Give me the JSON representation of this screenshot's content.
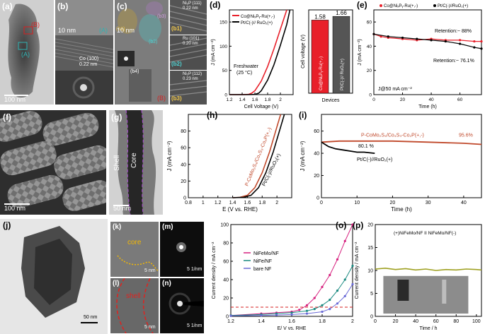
{
  "panels": {
    "a": {
      "label": "(a)",
      "scale": "100 nm",
      "marker_a": "(A)",
      "marker_b": "(B)"
    },
    "b": {
      "label": "(b)",
      "scale": "10 nm",
      "marker": "(A)",
      "fringe": "Co (100)",
      "fringe2": "0.22 nm"
    },
    "c": {
      "label": "(c)",
      "scale": "10 nm",
      "marker": "(B)",
      "zone1": "(b1)",
      "zone2": "(b2)",
      "zone3": "(b3)",
      "inset": "(b4)"
    },
    "b1": {
      "label": "(b1)",
      "phase": "Ni₂P (111)",
      "spacing": "0.22 nm"
    },
    "b2": {
      "label": "(b2)",
      "phase": "Ru (101)",
      "spacing": "0.20 nm"
    },
    "b3": {
      "label": "(b3)",
      "phase": "Ni₂P (112)",
      "spacing": "0.23 nm"
    },
    "f": {
      "label": "(f)",
      "scale": "100 nm"
    },
    "g": {
      "label": "(g)",
      "scale": "50 nm",
      "shell": "Shell",
      "core": "Core"
    },
    "j": {
      "label": "(j)",
      "scale": "50 nm"
    },
    "k": {
      "label": "(k)",
      "text": "core",
      "scale": "5 nm"
    },
    "l": {
      "label": "(l)",
      "text": "shell",
      "scale": "5 nm"
    },
    "m": {
      "label": "(m)",
      "scale": "5 1/nm"
    },
    "n": {
      "label": "(n)",
      "scale": "5 1/nm"
    }
  },
  "chart_data": [
    {
      "id": "d",
      "label": "(d)",
      "type": "line",
      "xlabel": "Cell Voltage (V)",
      "ylabel": "J (mA cm⁻²)",
      "xlim": [
        1.2,
        2.2
      ],
      "ylim": [
        0,
        175
      ],
      "xticks": [
        1.2,
        1.4,
        1.6,
        1.8,
        2.0
      ],
      "yticks": [
        0,
        50,
        100,
        150
      ],
      "annotation": "Freshwater",
      "annotation2": "(25 °C)",
      "series": [
        {
          "name": "Co@NiₓPᵧ-Ru(+,-)",
          "color": "#e8202a",
          "x": [
            1.2,
            1.4,
            1.5,
            1.55,
            1.6,
            1.7,
            1.8,
            1.9,
            2.0,
            2.1
          ],
          "y": [
            0,
            0,
            0.5,
            3,
            8,
            28,
            58,
            95,
            135,
            175
          ]
        },
        {
          "name": "Pt/C(-)// RuO₂(+)",
          "color": "#000000",
          "x": [
            1.2,
            1.5,
            1.6,
            1.66,
            1.7,
            1.8,
            1.9,
            2.0,
            2.1,
            2.15
          ],
          "y": [
            0,
            0,
            0.5,
            3,
            8,
            30,
            62,
            102,
            145,
            175
          ]
        }
      ]
    },
    {
      "id": "d_bar",
      "type": "bar",
      "ylabel": "Cell voltage (V)",
      "xlabel": "Devices",
      "categories": [
        "Co@NiₓPᵧ-Ru(+,-)",
        "Pt/C(-)// RuO₂(+)"
      ],
      "values": [
        1.58,
        1.66
      ],
      "value_labels": [
        "1.58",
        "1.66"
      ],
      "colors": [
        "#e8202a",
        "#555555"
      ]
    },
    {
      "id": "e",
      "label": "(e)",
      "type": "line",
      "xlabel": "Time (h)",
      "ylabel": "J (mA cm⁻²)",
      "xlim": [
        0,
        75
      ],
      "ylim": [
        0,
        70
      ],
      "xticks": [
        0,
        20,
        40,
        60
      ],
      "yticks": [
        0,
        20,
        40,
        60
      ],
      "note": "J@50 mA cm⁻²",
      "retention": [
        "Retention:~ 88%",
        "Retention:~ 76.1%"
      ],
      "series": [
        {
          "name": "Co@NiₓPᵧ-Ru(+,-)",
          "color": "#e8202a",
          "x": [
            0,
            5,
            10,
            20,
            30,
            40,
            50,
            60,
            70,
            75
          ],
          "y": [
            50,
            48,
            47,
            46,
            45,
            46,
            45,
            45,
            44,
            44
          ]
        },
        {
          "name": "Pt/C(-)//RuO₂(+)",
          "color": "#000000",
          "x": [
            0,
            10,
            20,
            30,
            40,
            50,
            60,
            70,
            75
          ],
          "y": [
            50,
            48,
            47,
            46,
            45,
            44,
            42,
            39,
            38
          ]
        }
      ]
    },
    {
      "id": "h",
      "label": "(h)",
      "type": "line",
      "xlabel": "E (V vs. RHE)",
      "ylabel": "J (mA cm⁻²)",
      "xlim": [
        0.8,
        2.2
      ],
      "ylim": [
        0,
        100
      ],
      "xticks": [
        0.8,
        1.0,
        1.2,
        1.4,
        1.6,
        1.8,
        2.0
      ],
      "yticks": [
        0,
        20,
        40,
        60,
        80
      ],
      "series": [
        {
          "name": "P-CoMo₂S₄/Co₄S₃-Co₂P(+,-)",
          "color": "#c0482a",
          "x": [
            1.4,
            1.5,
            1.6,
            1.7,
            1.8,
            1.9,
            2.0,
            2.05
          ],
          "y": [
            0,
            0.5,
            3,
            12,
            30,
            55,
            85,
            100
          ]
        },
        {
          "name": "Pt/C(-)//RuO₂(+)",
          "color": "#000000",
          "x": [
            1.4,
            1.55,
            1.65,
            1.75,
            1.85,
            1.95,
            2.05,
            2.1
          ],
          "y": [
            0,
            0.5,
            3,
            12,
            30,
            55,
            85,
            100
          ]
        }
      ]
    },
    {
      "id": "i",
      "label": "(i)",
      "type": "line",
      "xlabel": "Time (h)",
      "ylabel": "J (mA cm⁻²)",
      "xlim": [
        0,
        45
      ],
      "ylim": [
        0,
        75
      ],
      "xticks": [
        0,
        10,
        20,
        30,
        40
      ],
      "yticks": [
        0,
        20,
        40,
        60
      ],
      "series": [
        {
          "name": "P-CoMo₂S₄/Co₄S₃-Co₂P(+,-)",
          "color": "#c0482a",
          "end_label": "95.6%",
          "x": [
            0,
            5,
            10,
            20,
            30,
            40,
            45
          ],
          "y": [
            50,
            51,
            51,
            51,
            50,
            49,
            48
          ]
        },
        {
          "name": "Pt/C(-)//RuO₂(+)",
          "color": "#000000",
          "end_label": "80.1 %",
          "x": [
            0,
            2,
            4,
            6,
            8,
            10,
            12,
            15
          ],
          "y": [
            50,
            46,
            44,
            43,
            42,
            41,
            41,
            40
          ]
        }
      ]
    },
    {
      "id": "o",
      "label": "(o)",
      "type": "line",
      "xlabel": "E/ V vs. RHE",
      "ylabel": "Current density / mA cm⁻²",
      "xlim": [
        1.2,
        2.0
      ],
      "ylim": [
        0,
        100
      ],
      "xticks": [
        1.2,
        1.4,
        1.6,
        1.8,
        2.0
      ],
      "yticks": [
        0,
        20,
        40,
        60,
        80,
        100
      ],
      "series": [
        {
          "name": "NiFeMo/NF",
          "color": "#d6217f",
          "x": [
            1.2,
            1.4,
            1.5,
            1.6,
            1.65,
            1.7,
            1.75,
            1.8,
            1.85,
            1.9,
            1.95,
            2.0
          ],
          "y": [
            1,
            3,
            4,
            5,
            7,
            12,
            20,
            32,
            45,
            62,
            82,
            100
          ]
        },
        {
          "name": "NiFe/NF",
          "color": "#1a8a80",
          "x": [
            1.2,
            1.4,
            1.5,
            1.6,
            1.7,
            1.75,
            1.8,
            1.85,
            1.9,
            1.95,
            2.0
          ],
          "y": [
            1,
            2,
            3,
            4,
            6,
            8,
            12,
            18,
            28,
            40,
            55
          ]
        },
        {
          "name": "bare NF",
          "color": "#6b6bd6",
          "x": [
            1.2,
            1.4,
            1.5,
            1.6,
            1.7,
            1.8,
            1.85,
            1.9,
            1.95,
            2.0
          ],
          "y": [
            0.5,
            1,
            1.5,
            2,
            3,
            5,
            8,
            14,
            22,
            35
          ]
        }
      ],
      "ref_line": 10
    },
    {
      "id": "p",
      "label": "(p)",
      "type": "line",
      "xlabel": "Time / h",
      "ylabel": "Current density / mA cm⁻²",
      "xlim": [
        0,
        105
      ],
      "ylim": [
        0,
        20
      ],
      "xticks": [
        0,
        20,
        40,
        60,
        80,
        100
      ],
      "yticks": [
        0,
        5,
        10,
        15,
        20
      ],
      "legend": "(+)NiFeMo/NF II NiFeMo/NF(-)",
      "series": [
        {
          "name": "(+)NiFeMo/NF II NiFeMo/NF(-)",
          "color": "#9ea020",
          "x": [
            0,
            10,
            20,
            30,
            40,
            50,
            60,
            70,
            80,
            90,
            100,
            105
          ],
          "y": [
            10.3,
            10.5,
            10.2,
            10.4,
            10.1,
            10.3,
            10.0,
            10.2,
            10.1,
            10.3,
            10.2,
            10.1
          ]
        }
      ]
    }
  ]
}
